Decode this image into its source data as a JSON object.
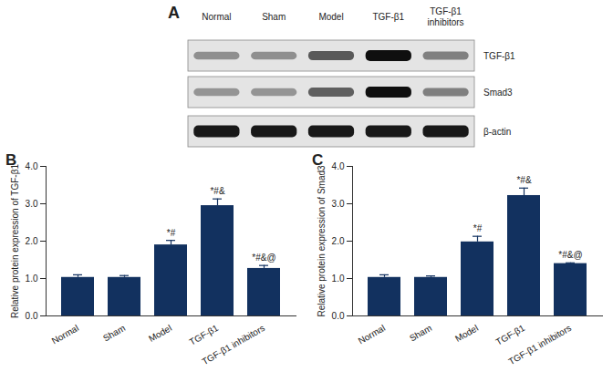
{
  "blot": {
    "panel_label": "A",
    "lanes": [
      "Normal",
      "Sham",
      "Model",
      "TGF-β1",
      "TGF-β1 inhibitors"
    ],
    "rows": [
      "TGF-β1",
      "Smad3",
      "β-actin"
    ]
  },
  "chart_data": [
    {
      "type": "bar",
      "title": "B",
      "categories": [
        "Normal",
        "Sham",
        "Model",
        "TGF-β1",
        "TGF-β1 inhibitors"
      ],
      "values": [
        1.03,
        1.03,
        1.9,
        2.95,
        1.27
      ],
      "errors": [
        0.07,
        0.05,
        0.12,
        0.18,
        0.08
      ],
      "annotations": [
        null,
        null,
        "*#",
        "*#&",
        "*#&@"
      ],
      "ylabel": "Relative protein expression of TGF-β1",
      "color": "#12315f",
      "ylim": [
        0,
        4
      ],
      "yticks": [
        0,
        1,
        2,
        3,
        4
      ],
      "grid": false
    },
    {
      "type": "bar",
      "title": "C",
      "categories": [
        "Normal",
        "Sham",
        "Model",
        "TGF-β1",
        "TGF-β1 inhibitors"
      ],
      "values": [
        1.03,
        1.03,
        1.98,
        3.22,
        1.4
      ],
      "errors": [
        0.07,
        0.04,
        0.15,
        0.2,
        0.02
      ],
      "annotations": [
        null,
        null,
        "*#",
        "*#&",
        "*#&@"
      ],
      "ylabel": "Relative protein expression of Smad3",
      "color": "#12315f",
      "ylim": [
        0,
        4
      ],
      "yticks": [
        0,
        1,
        2,
        3,
        4
      ],
      "grid": false
    }
  ]
}
